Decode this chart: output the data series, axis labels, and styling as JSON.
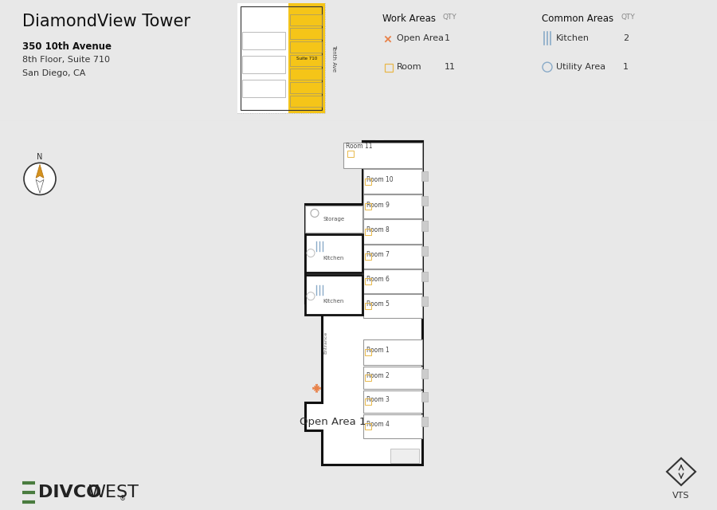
{
  "bg_color": "#e8e8e8",
  "header_bg": "#ffffff",
  "title": "DiamondView Tower",
  "address1": "350 10th Avenue",
  "address2": "8th Floor, Suite 710",
  "address3": "San Diego, CA",
  "work_areas_label": "Work Areas",
  "common_areas_label": "Common Areas",
  "qty_label": "QTY",
  "open_area_label": "Open Area",
  "open_area_qty": "1",
  "room_label": "Room",
  "room_qty": "11",
  "kitchen_label": "Kitchen",
  "kitchen_qty": "2",
  "utility_label": "Utility Area",
  "utility_qty": "1",
  "wall_color": "#111111",
  "thin_wall_color": "#999999",
  "room_fill": "#ffffff",
  "floor_fill": "#ffffff",
  "bg_gray": "#e8e8e8",
  "yellow": "#f5c518",
  "open_area_icon": "#e8824a",
  "kitchen_icon": "#8aabc8",
  "room_icon": "#e8b84a",
  "divco_green": "#4a7c3f",
  "divco_gray": "#222222",
  "compass_gold": "#d4921e",
  "door_color": "#aaaaaa",
  "light_gray": "#bbbbbb"
}
